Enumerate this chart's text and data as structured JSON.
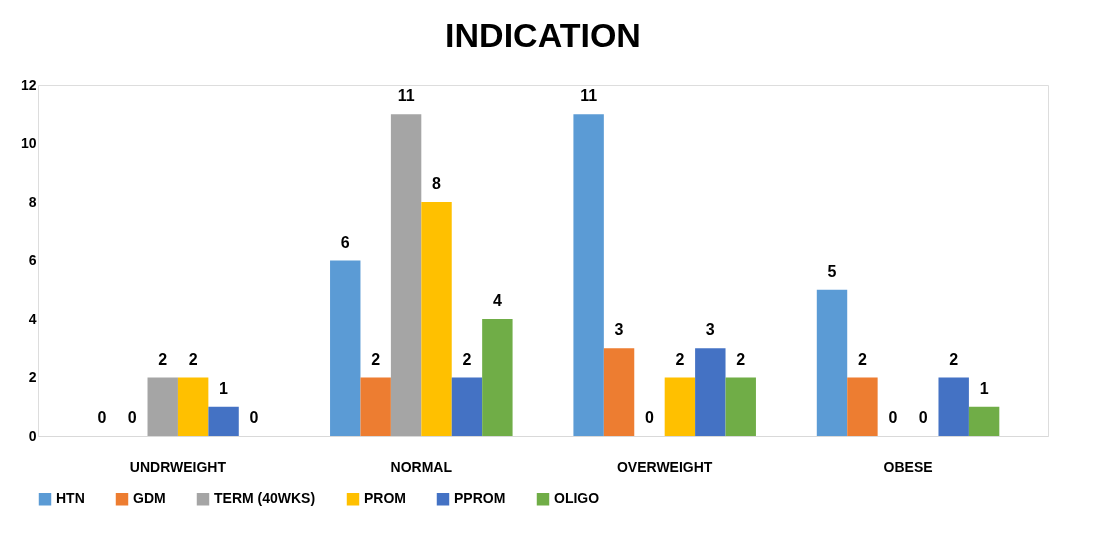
{
  "chart_data": {
    "type": "bar",
    "title": "INDICATION",
    "categories": [
      "UNDRWEIGHT",
      "NORMAL",
      "OVERWEIGHT",
      "OBESE"
    ],
    "series": [
      {
        "name": "HTN",
        "color": "#5b9bd5",
        "values": [
          0,
          6,
          11,
          5
        ]
      },
      {
        "name": "GDM",
        "color": "#ed7d31",
        "values": [
          0,
          2,
          3,
          2
        ]
      },
      {
        "name": "TERM (40WKS)",
        "color": "#a5a5a5",
        "values": [
          2,
          11,
          0,
          0
        ]
      },
      {
        "name": "PROM",
        "color": "#ffc000",
        "values": [
          2,
          8,
          2,
          0
        ]
      },
      {
        "name": "PPROM",
        "color": "#4472c4",
        "values": [
          1,
          2,
          3,
          2
        ]
      },
      {
        "name": "OLIGO",
        "color": "#70ad47",
        "values": [
          0,
          4,
          2,
          1
        ]
      }
    ],
    "ylim": [
      0,
      12
    ],
    "yticks": [
      0,
      2,
      4,
      6,
      8,
      10,
      12
    ],
    "grid": false,
    "legend": "bottom",
    "data_labels": true
  }
}
